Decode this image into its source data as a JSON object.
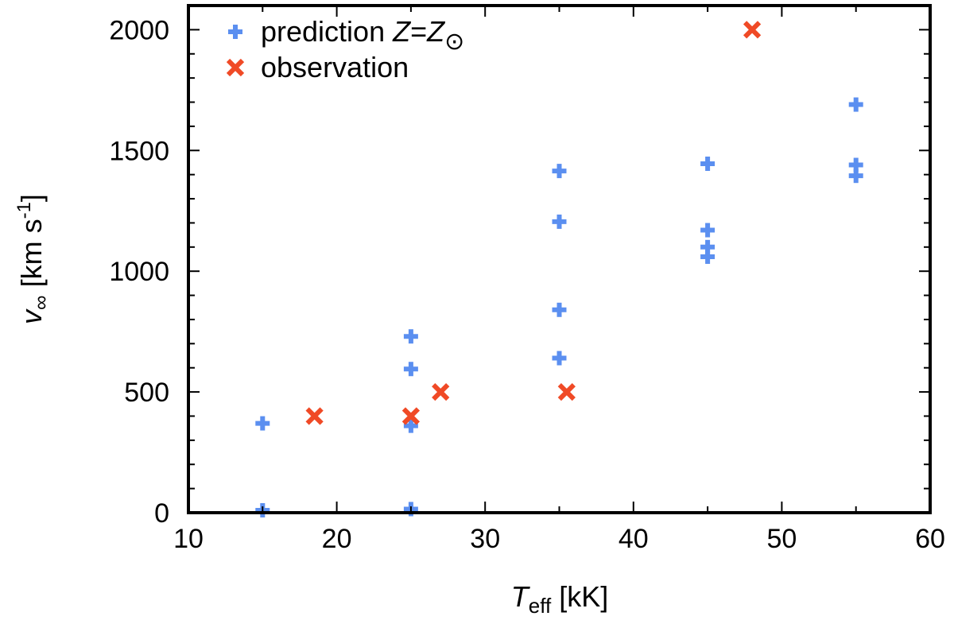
{
  "chart_data": {
    "type": "scatter",
    "xlim": [
      10,
      60
    ],
    "ylim": [
      0,
      2100
    ],
    "x_ticks": [
      10,
      20,
      30,
      40,
      50,
      60
    ],
    "y_ticks": [
      0,
      500,
      1000,
      1500,
      2000
    ],
    "xlabel": {
      "main": "T",
      "sub": "eff",
      "unit": " [kK]"
    },
    "ylabel": {
      "main": "v",
      "sub": "∞",
      "unit": " [km s",
      "sup": "-1",
      "close": "]"
    },
    "grid": false,
    "legend_position": "top-left",
    "series": [
      {
        "name": {
          "prefix": "prediction ",
          "z1": "Z",
          "eq": "=",
          "z2": "Z",
          "sub": "⊙"
        },
        "marker": "plus",
        "color": "#5b8ff0",
        "points": [
          [
            15,
            10
          ],
          [
            15,
            370
          ],
          [
            25,
            15
          ],
          [
            25,
            360
          ],
          [
            25,
            595
          ],
          [
            25,
            730
          ],
          [
            35,
            640
          ],
          [
            35,
            840
          ],
          [
            35,
            1205
          ],
          [
            35,
            1415
          ],
          [
            45,
            1060
          ],
          [
            45,
            1100
          ],
          [
            45,
            1170
          ],
          [
            45,
            1445
          ],
          [
            55,
            1395
          ],
          [
            55,
            1440
          ],
          [
            55,
            1690
          ]
        ]
      },
      {
        "name": {
          "prefix": "observation"
        },
        "marker": "cross",
        "color": "#f04a26",
        "points": [
          [
            18.5,
            400
          ],
          [
            25,
            400
          ],
          [
            27,
            500
          ],
          [
            35.5,
            500
          ],
          [
            48,
            2000
          ]
        ]
      }
    ]
  }
}
